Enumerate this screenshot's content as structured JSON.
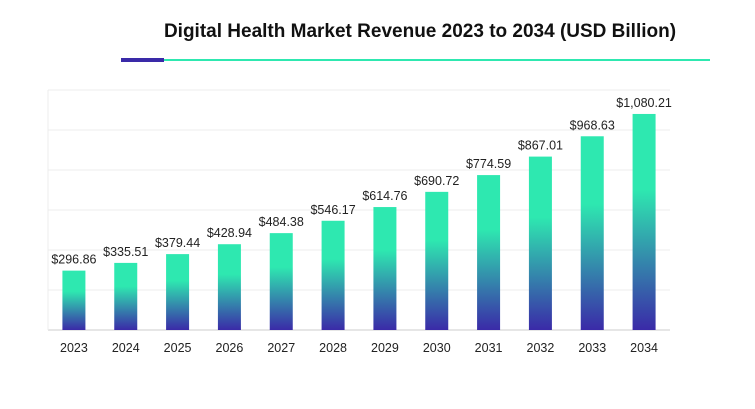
{
  "title": "Digital Health Market Revenue 2023 to 2034 (USD Billion)",
  "colors": {
    "accent": "#3a2aa8",
    "rule": "#2ee8b0",
    "bar_top": "#2ee8b0",
    "bar_bottom": "#3a2aa8",
    "grid": "#ececec",
    "axis": "#cccccc"
  },
  "chart_data": {
    "type": "bar",
    "title": "Digital Health Market Revenue 2023 to 2034 (USD Billion)",
    "xlabel": "",
    "ylabel": "",
    "categories": [
      "2023",
      "2024",
      "2025",
      "2026",
      "2027",
      "2028",
      "2029",
      "2030",
      "2031",
      "2032",
      "2033",
      "2034"
    ],
    "values": [
      296.86,
      335.51,
      379.44,
      428.94,
      484.38,
      546.17,
      614.76,
      690.72,
      774.59,
      867.01,
      968.63,
      1080.21
    ],
    "labels": [
      "$296.86",
      "$335.51",
      "$379.44",
      "$428.94",
      "$484.38",
      "$546.17",
      "$614.76",
      "$690.72",
      "$774.59",
      "$867.01",
      "$968.63",
      "$1,080.21"
    ],
    "ylim": [
      0,
      1200
    ],
    "grid": true
  }
}
